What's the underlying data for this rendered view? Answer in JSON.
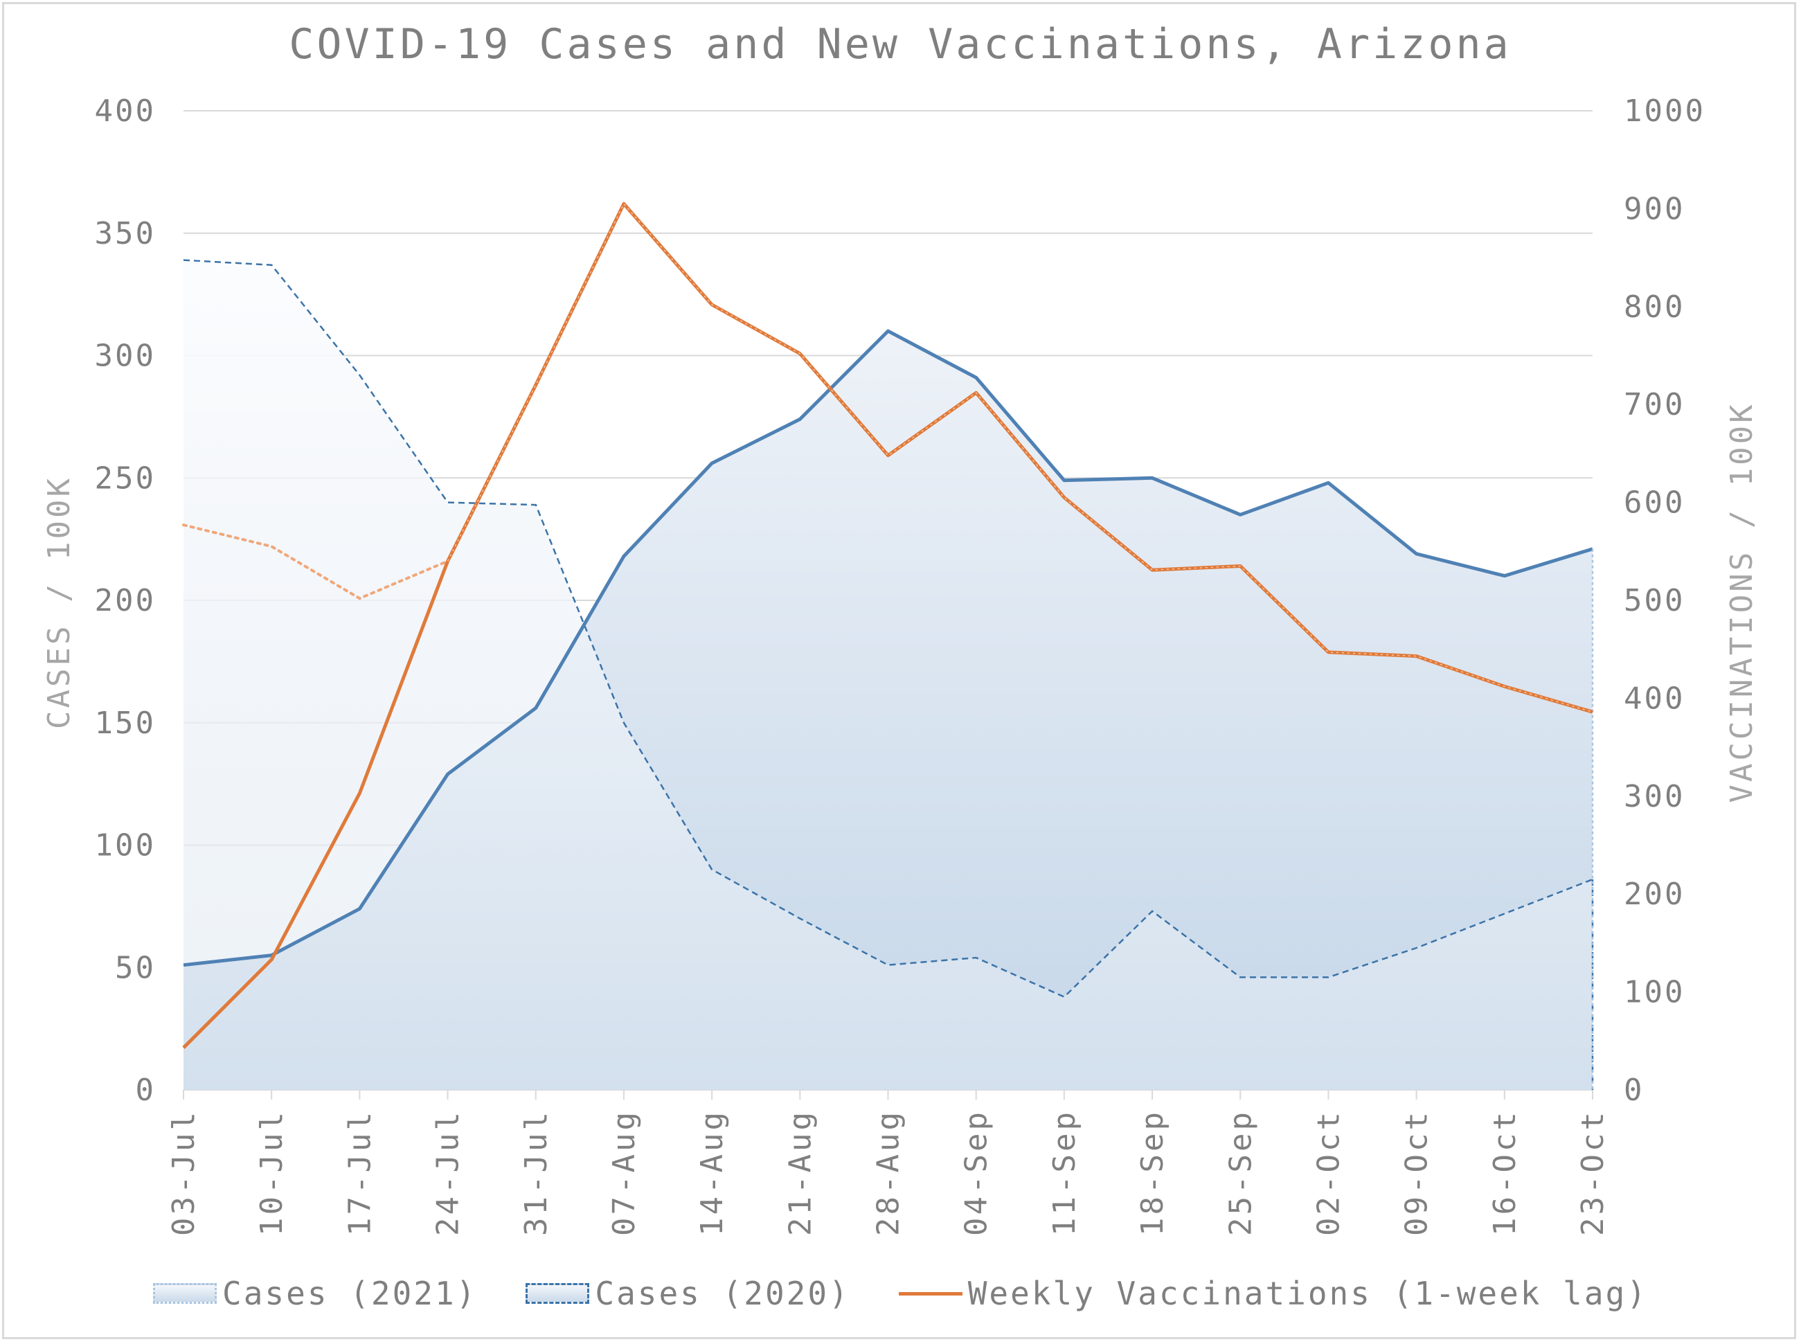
{
  "chart_data": {
    "type": "line",
    "title": "COVID-19 Cases and New Vaccinations, Arizona",
    "ylabel": "CASES / 100K",
    "y2label": "VACCINATIONS / 100K",
    "ylim": [
      0,
      400
    ],
    "y2lim": [
      0,
      1000
    ],
    "yticks": [
      "0",
      "50",
      "100",
      "150",
      "200",
      "250",
      "300",
      "350",
      "400"
    ],
    "y2ticks": [
      "0",
      "100",
      "200",
      "300",
      "400",
      "500",
      "600",
      "700",
      "800",
      "900",
      "1000"
    ],
    "categories": [
      "03-Jul",
      "10-Jul",
      "17-Jul",
      "24-Jul",
      "31-Jul",
      "07-Aug",
      "14-Aug",
      "21-Aug",
      "28-Aug",
      "04-Sep",
      "11-Sep",
      "18-Sep",
      "25-Sep",
      "02-Oct",
      "09-Oct",
      "16-Oct",
      "23-Oct"
    ],
    "grid": true,
    "legend_position": "bottom",
    "series": [
      {
        "name": "Cases (2021)",
        "axis": "left",
        "style": "area",
        "color": "#4f81b4",
        "values": [
          51,
          55,
          74,
          129,
          156,
          218,
          256,
          274,
          310,
          291,
          249,
          250,
          235,
          248,
          219,
          210,
          221
        ]
      },
      {
        "name": "Cases (2020)",
        "axis": "left",
        "style": "area-dashed",
        "color": "#3b73a8",
        "values": [
          339,
          337,
          292,
          240,
          239,
          150,
          90,
          70,
          51,
          54,
          38,
          73,
          46,
          46,
          58,
          72,
          86
        ]
      },
      {
        "name": "Weekly Vaccinations (1-week lag)",
        "axis": "right",
        "style": "line",
        "color": "#e07a3a",
        "values": [
          43,
          133,
          303,
          540,
          720,
          905,
          802,
          752,
          648,
          712,
          605,
          531,
          535,
          447,
          443,
          412,
          386
        ]
      }
    ],
    "annotation_series": {
      "name": "",
      "axis": "right",
      "style": "dotted",
      "color": "#f0a77a",
      "values": [
        577,
        555,
        502,
        540
      ]
    }
  },
  "colors": {
    "grid": "#d9d9d9",
    "axis_text": "#7f7f7f",
    "title_text": "#7f7f7f"
  }
}
